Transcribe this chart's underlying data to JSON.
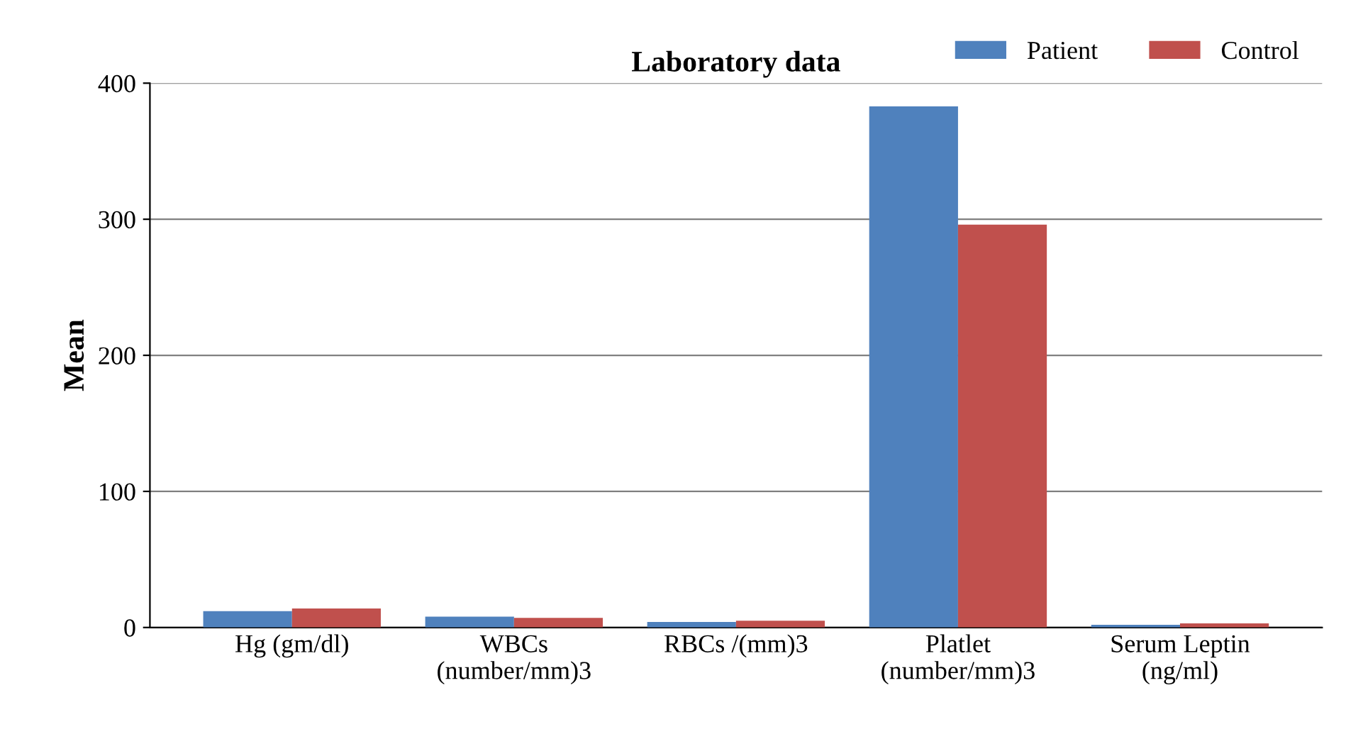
{
  "chart_data": {
    "type": "bar",
    "title": "Laboratory data",
    "ylabel": "Mean",
    "categories": [
      "Hg (gm/dl)",
      "WBCs\n(number/mm)3",
      "RBCs /(mm)3",
      "Platlet\n(number/mm)3",
      "Serum Leptin\n(ng/ml)"
    ],
    "series": [
      {
        "name": "Patient",
        "color": "#4f81bd",
        "values": [
          12,
          8,
          4,
          383,
          2
        ]
      },
      {
        "name": "Control",
        "color": "#c0504d",
        "values": [
          14,
          7,
          5,
          296,
          3
        ]
      }
    ],
    "ylim": [
      0,
      400
    ],
    "yticks": [
      0,
      100,
      200,
      300,
      400
    ],
    "grid": "y",
    "legend": "top right"
  }
}
